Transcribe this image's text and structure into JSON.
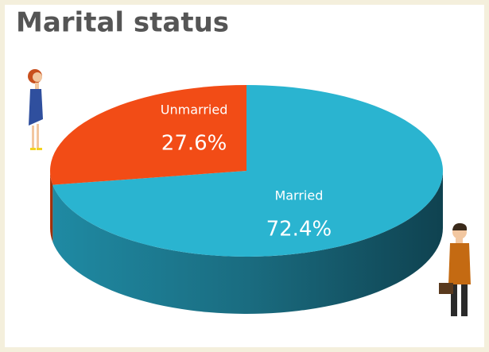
{
  "chart_data": {
    "type": "pie",
    "title": "Marital status",
    "categories": [
      "Married",
      "Unmarried"
    ],
    "values": [
      72.4,
      27.6
    ],
    "value_labels": [
      "72.4%",
      "27.6%"
    ],
    "colors": [
      "#2ab4d0",
      "#f24c16"
    ]
  }
}
